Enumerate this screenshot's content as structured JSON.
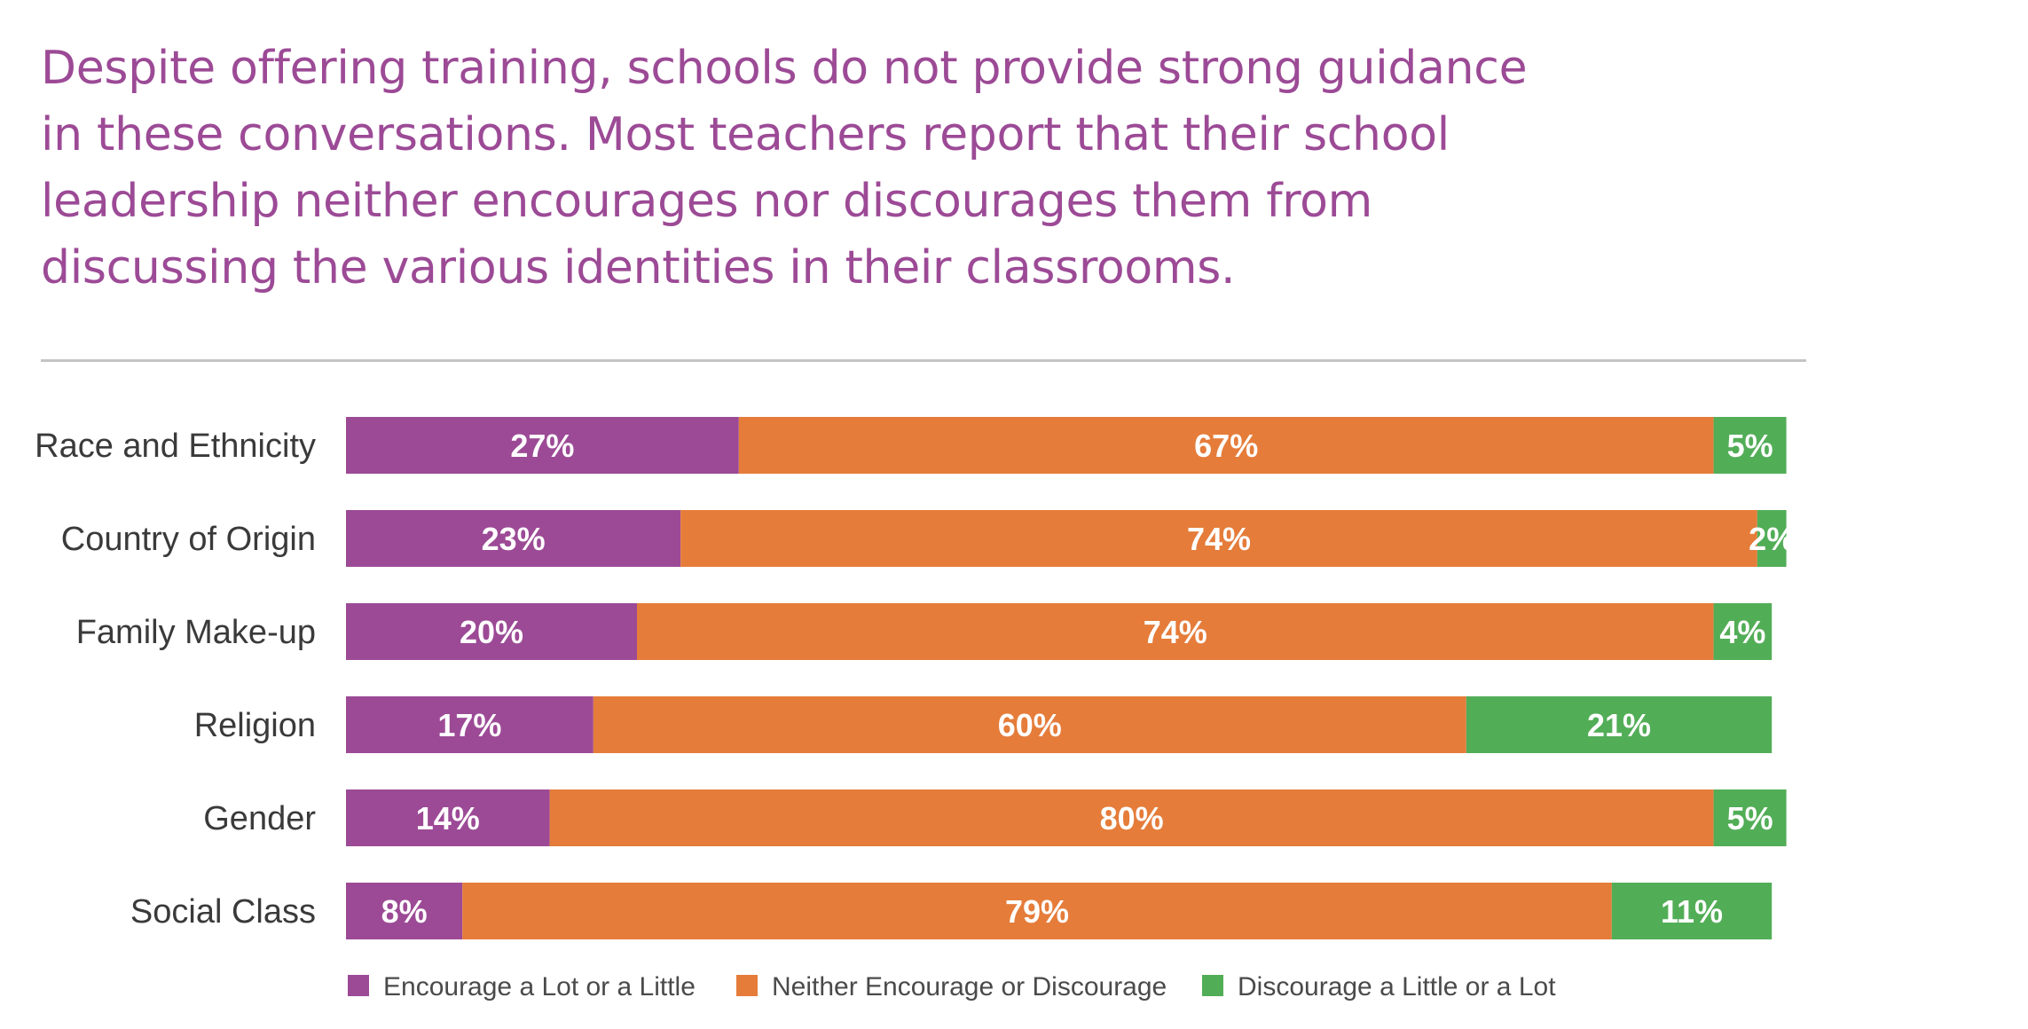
{
  "headline": {
    "lines": [
      "Despite offering training, schools do not provide strong guidance",
      "in these conversations. Most teachers report that their school",
      "leadership neither encourages nor discourages them from",
      "discussing the various identities in their classrooms."
    ]
  },
  "colors": {
    "headline": "#9c4a96",
    "encourage": "#9c4a96",
    "neither": "#e57c3a",
    "discourage": "#52ad57"
  },
  "chart_data": {
    "type": "bar",
    "orientation": "horizontal",
    "stacked": true,
    "categories": [
      "Race and Ethnicity",
      "Country of Origin",
      "Family Make-up",
      "Religion",
      "Gender",
      "Social Class"
    ],
    "series": [
      {
        "name": "Encourage a Lot or a Little",
        "values": [
          27,
          23,
          20,
          17,
          14,
          8
        ]
      },
      {
        "name": "Neither Encourage or Discourage",
        "values": [
          67,
          74,
          74,
          60,
          80,
          79
        ]
      },
      {
        "name": "Discourage a Little or a Lot",
        "values": [
          5,
          2,
          4,
          21,
          5,
          11
        ]
      }
    ],
    "value_labels": [
      [
        "27%",
        "67%",
        "5%"
      ],
      [
        "23%",
        "74%",
        "2%"
      ],
      [
        "20%",
        "74%",
        "4%"
      ],
      [
        "17%",
        "60%",
        "21%"
      ],
      [
        "14%",
        "80%",
        "5%"
      ],
      [
        "8%",
        "79%",
        "11%"
      ]
    ],
    "xlim": [
      0,
      100
    ],
    "grid": false,
    "legend_position": "bottom"
  }
}
